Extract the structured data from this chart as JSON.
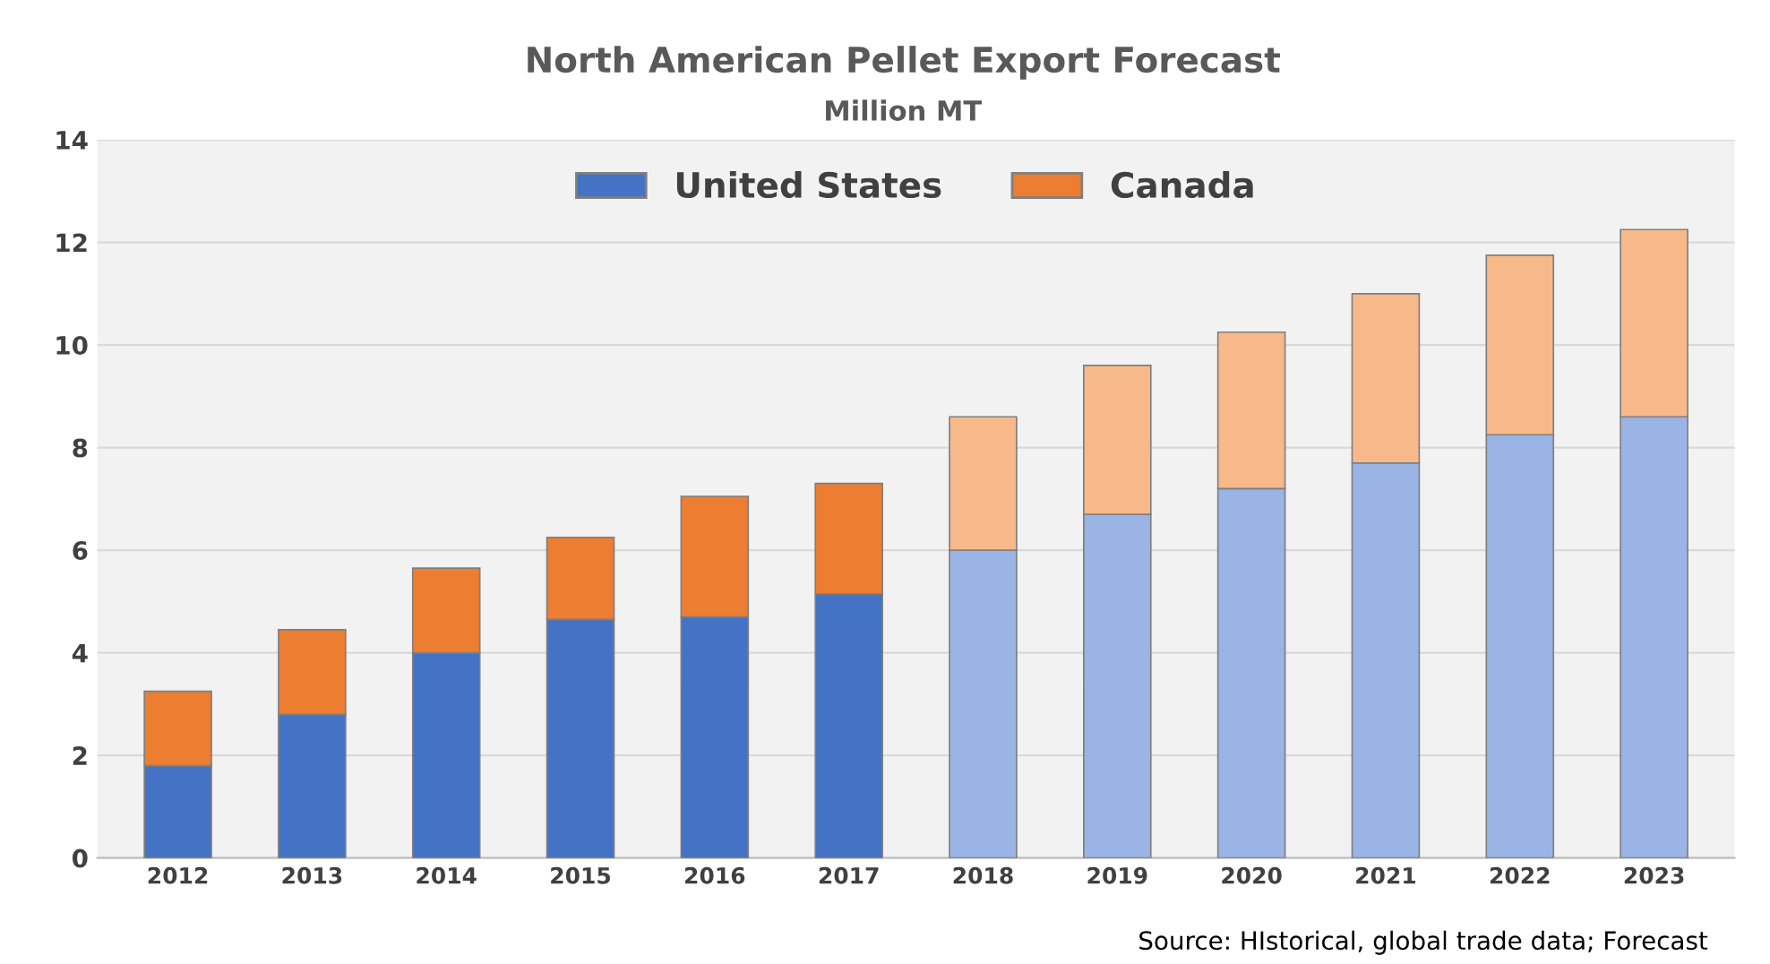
{
  "chart_data": {
    "type": "bar",
    "stacked": true,
    "title": "North American Pellet Export Forecast",
    "subtitle": "Million MT",
    "categories": [
      "2012",
      "2013",
      "2014",
      "2015",
      "2016",
      "2017",
      "2018",
      "2019",
      "2020",
      "2021",
      "2022",
      "2023"
    ],
    "series": [
      {
        "name": "United States",
        "color": "#4472c4",
        "colors": [
          "#4472c4",
          "#4472c4",
          "#4472c4",
          "#4472c4",
          "#4472c4",
          "#4472c4",
          "#9ab4e6",
          "#9ab4e6",
          "#9ab4e6",
          "#9ab4e6",
          "#9ab4e6",
          "#9ab4e6"
        ],
        "values": [
          1.8,
          2.8,
          4.0,
          4.65,
          4.7,
          5.15,
          6.0,
          6.7,
          7.2,
          7.7,
          8.25,
          8.6
        ]
      },
      {
        "name": "Canada",
        "color": "#ed7d31",
        "colors": [
          "#ed7d31",
          "#ed7d31",
          "#ed7d31",
          "#ed7d31",
          "#ed7d31",
          "#ed7d31",
          "#f8b98a",
          "#f8b98a",
          "#f8b98a",
          "#f8b98a",
          "#f8b98a",
          "#f8b98a"
        ],
        "values": [
          1.45,
          1.65,
          1.65,
          1.6,
          2.35,
          2.15,
          2.6,
          2.9,
          3.05,
          3.3,
          3.5,
          3.65
        ]
      }
    ],
    "ylim": [
      0,
      14
    ],
    "yticks": [
      0,
      2,
      4,
      6,
      8,
      10,
      12,
      14
    ],
    "grid": "y",
    "legend": "top",
    "annotations": [
      "Source: HIstorical, global trade data; Forecast"
    ]
  }
}
